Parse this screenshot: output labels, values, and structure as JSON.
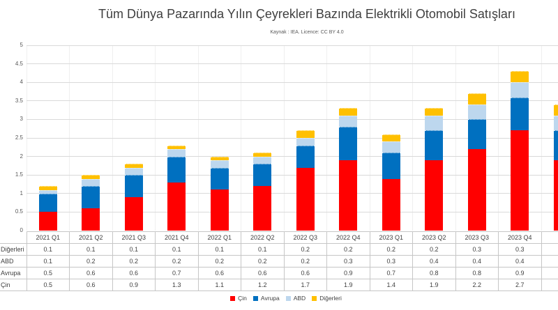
{
  "chart": {
    "title": "Tüm Dünya Pazarında Yılın Çeyrekleri Bazında Elektrikli Otomobil Satışları",
    "subtitle": "Kaynak : IEA. Licence: CC BY 4.0"
  },
  "chart_data": {
    "type": "bar",
    "stacked": true,
    "title": "Tüm Dünya Pazarında Yılın Çeyrekleri Bazında Elektrikli Otomobil Satışları",
    "subtitle": "Kaynak : IEA. Licence: CC BY 4.0",
    "categories": [
      "2021 Q1",
      "2021 Q2",
      "2021 Q3",
      "2021 Q4",
      "2022 Q1",
      "2022 Q2",
      "2022 Q3",
      "2022 Q4",
      "2023 Q1",
      "2023 Q2",
      "2023 Q3",
      "2023 Q4"
    ],
    "series": [
      {
        "name": "Çin",
        "color": "#FF0000",
        "values": [
          0.5,
          0.6,
          0.9,
          1.3,
          1.1,
          1.2,
          1.7,
          1.9,
          1.4,
          1.9,
          2.2,
          2.7
        ]
      },
      {
        "name": "Avrupa",
        "color": "#0070C0",
        "values": [
          0.5,
          0.6,
          0.6,
          0.7,
          0.6,
          0.6,
          0.6,
          0.9,
          0.7,
          0.8,
          0.8,
          0.9
        ]
      },
      {
        "name": "ABD",
        "color": "#BDD7EE",
        "values": [
          0.1,
          0.2,
          0.2,
          0.2,
          0.2,
          0.2,
          0.2,
          0.3,
          0.3,
          0.4,
          0.4,
          0.4
        ]
      },
      {
        "name": "Diğerleri",
        "color": "#FFC000",
        "values": [
          0.1,
          0.1,
          0.1,
          0.1,
          0.1,
          0.1,
          0.2,
          0.2,
          0.2,
          0.2,
          0.3,
          0.3
        ]
      }
    ],
    "partial_next_bar": {
      "header_visible_text": "20",
      "note": "13th bar clipped by right image edge; segment values estimated from pixels",
      "segments": [
        1.9,
        0.8,
        0.4,
        0.3
      ]
    },
    "y_ticks": [
      0,
      0.5,
      1,
      1.5,
      2,
      2.5,
      3,
      3.5,
      4,
      4.5,
      5
    ],
    "ylim": [
      0,
      5
    ],
    "grid": true,
    "legend_position": "bottom"
  },
  "table": {
    "col_headers": [
      "2021 Q1",
      "2021 Q2",
      "2021 Q3",
      "2021 Q4",
      "2022 Q1",
      "2022 Q2",
      "2022 Q3",
      "2022 Q4",
      "2023 Q1",
      "2023 Q2",
      "2023 Q3",
      "2023 Q4",
      "20"
    ],
    "rows": [
      {
        "label": "Diğerleri",
        "values": [
          "0.1",
          "0.1",
          "0.1",
          "0.1",
          "0.1",
          "0.1",
          "0.2",
          "0.2",
          "0.2",
          "0.2",
          "0.3",
          "0.3",
          ""
        ]
      },
      {
        "label": "ABD",
        "values": [
          "0.1",
          "0.2",
          "0.2",
          "0.2",
          "0.2",
          "0.2",
          "0.2",
          "0.3",
          "0.3",
          "0.4",
          "0.4",
          "0.4",
          ""
        ]
      },
      {
        "label": "Avrupa",
        "values": [
          "0.5",
          "0.6",
          "0.6",
          "0.7",
          "0.6",
          "0.6",
          "0.6",
          "0.9",
          "0.7",
          "0.8",
          "0.8",
          "0.9",
          ""
        ]
      },
      {
        "label": "Çin",
        "values": [
          "0.5",
          "0.6",
          "0.9",
          "1.3",
          "1.1",
          "1.2",
          "1.7",
          "1.9",
          "1.4",
          "1.9",
          "2.2",
          "2.7",
          ""
        ]
      }
    ]
  },
  "legend": {
    "items": [
      {
        "label": "Çin",
        "color": "#FF0000"
      },
      {
        "label": "Avrupa",
        "color": "#0070C0"
      },
      {
        "label": "ABD",
        "color": "#BDD7EE"
      },
      {
        "label": "Diğerleri",
        "color": "#FFC000"
      }
    ]
  }
}
